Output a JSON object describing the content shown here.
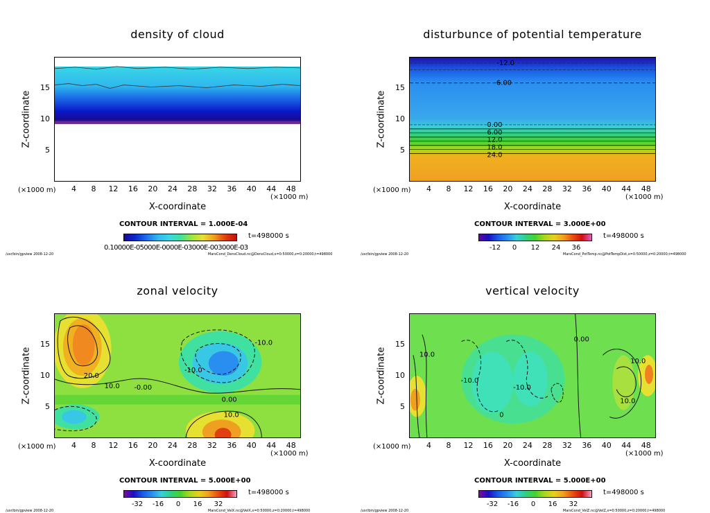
{
  "time_label": "t=498000 s",
  "footer_left": "/usr/bin/gpview   2008-12-20",
  "panels": [
    {
      "title": "density of cloud",
      "contour_interval": "CONTOUR INTERVAL = 1.000E-04",
      "colorbar_ticks_dense": "0.10000E-05000E-0000E-03000E-003000E-03",
      "footer_right": "MarsCond_DensCloud.nc@DensCloud,x=0:50000,z=0:20000,t=498000"
    },
    {
      "title": "disturbunce of potential temperature",
      "contour_interval": "CONTOUR INTERVAL = 3.000E+00",
      "colorbar_ticks": [
        "-12",
        "0",
        "12",
        "24",
        "36"
      ],
      "contour_labels": [
        "-12.0",
        "-6.00",
        "0.00",
        "6.00",
        "12.0",
        "18.0",
        "24.0"
      ],
      "footer_right": "MarsCond_PotTemp.nc@PotTempDist,x=0:50000,z=0:20000,t=498000"
    },
    {
      "title": "zonal velocity",
      "contour_interval": "CONTOUR INTERVAL = 5.000E+00",
      "colorbar_ticks": [
        "-32",
        "-16",
        "0",
        "16",
        "32"
      ],
      "contour_labels": [
        "20.0",
        "10.0",
        "-10.0",
        "-0.00",
        "0.00",
        "10.0",
        "-10.0"
      ],
      "footer_right": "MarsCond_VelX.nc@VelX,x=0:50000,z=0:20000,t=498000"
    },
    {
      "title": "vertical velocity",
      "contour_interval": "CONTOUR INTERVAL = 5.000E+00",
      "colorbar_ticks": [
        "-32",
        "-16",
        "0",
        "16",
        "32"
      ],
      "contour_labels": [
        "10.0",
        "-10.0",
        "0.00",
        "10.0",
        "-10.0",
        "10.0",
        "0"
      ],
      "footer_right": "MarsCond_VelZ.nc@VelZ,x=0:50000,z=0:20000,t=498000"
    }
  ],
  "chart_data": [
    {
      "type": "heatmap",
      "title": "density of cloud",
      "xlabel": "X-coordinate",
      "ylabel": "Z-coordinate",
      "x_unit": "(×1000 m)",
      "xlim": [
        0,
        50
      ],
      "ylim": [
        0,
        20
      ],
      "xticks": [
        "4",
        "8",
        "12",
        "16",
        "20",
        "24",
        "28",
        "32",
        "36",
        "40",
        "44",
        "48"
      ],
      "yticks": [
        "5",
        "10",
        "15"
      ],
      "cloud_base_z": 9.5,
      "cloud_top_z": 19,
      "contour_interval": 0.0001
    },
    {
      "type": "heatmap",
      "title": "disturbunce of potential temperature",
      "xlabel": "X-coordinate",
      "ylabel": "Z-coordinate",
      "x_unit": "(×1000 m)",
      "xlim": [
        0,
        50
      ],
      "ylim": [
        0,
        20
      ],
      "xticks": [
        "4",
        "8",
        "12",
        "16",
        "20",
        "24",
        "28",
        "32",
        "36",
        "40",
        "44",
        "48"
      ],
      "yticks": [
        "5",
        "10",
        "15"
      ],
      "contour_interval": 3.0,
      "colorbar_range": [
        -18,
        42
      ]
    },
    {
      "type": "heatmap",
      "title": "zonal velocity",
      "xlabel": "X-coordinate",
      "ylabel": "Z-coordinate",
      "x_unit": "(×1000 m)",
      "xlim": [
        0,
        50
      ],
      "ylim": [
        0,
        20
      ],
      "xticks": [
        "4",
        "8",
        "12",
        "16",
        "20",
        "24",
        "28",
        "32",
        "36",
        "40",
        "44",
        "48"
      ],
      "yticks": [
        "5",
        "10",
        "15"
      ],
      "contour_interval": 5.0,
      "colorbar_range": [
        -40,
        40
      ]
    },
    {
      "type": "heatmap",
      "title": "vertical velocity",
      "xlabel": "X-coordinate",
      "ylabel": "Z-coordinate",
      "x_unit": "(×1000 m)",
      "xlim": [
        0,
        50
      ],
      "ylim": [
        0,
        20
      ],
      "xticks": [
        "4",
        "8",
        "12",
        "16",
        "20",
        "24",
        "28",
        "32",
        "36",
        "40",
        "44",
        "48"
      ],
      "yticks": [
        "5",
        "10",
        "15"
      ],
      "contour_interval": 5.0,
      "colorbar_range": [
        -40,
        40
      ]
    }
  ]
}
